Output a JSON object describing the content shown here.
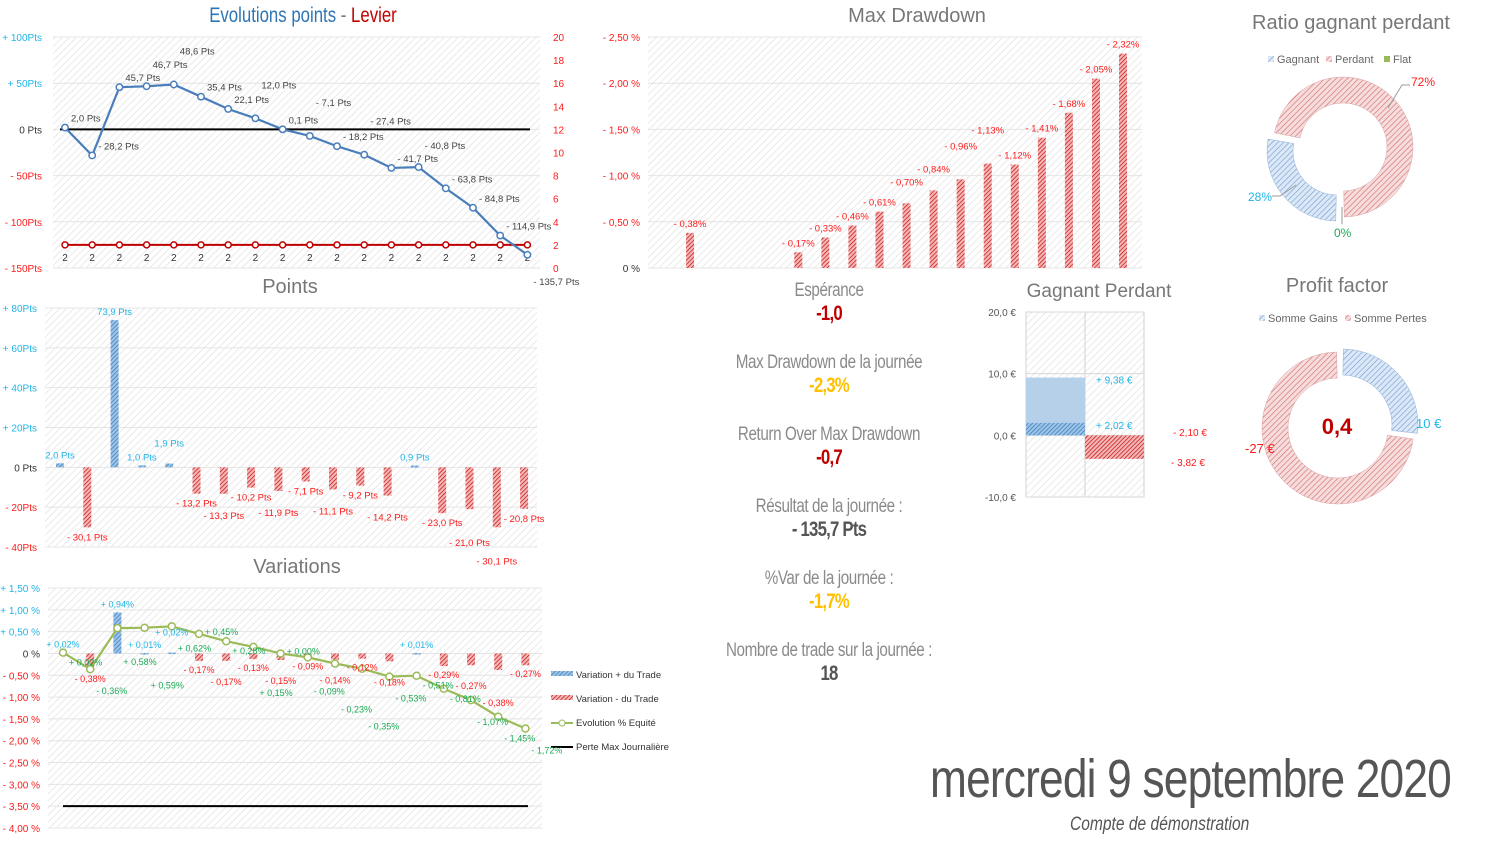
{
  "colors": {
    "blue": "#5b8fd0",
    "red": "#d04a4a",
    "pos_text": "#1fb5e8",
    "neg_text": "#ff1a1a",
    "equity": "#9bbb59",
    "equity_text": "#1aaa55",
    "dark_red": "#c00000",
    "gold": "#ffc000",
    "grey": "#8a8a8a"
  },
  "evolution": {
    "title_a": "Evolutions points",
    "title_sep": " - ",
    "title_b": "Levier",
    "chart_data": {
      "type": "line",
      "ylim": [
        -150,
        100
      ],
      "y2lim": [
        0,
        20
      ],
      "yticks": [
        {
          "v": 100,
          "t": "+ 100Pts"
        },
        {
          "v": 50,
          "t": "+ 50Pts"
        },
        {
          "v": 0,
          "t": "0 Pts"
        },
        {
          "v": -50,
          "t": "- 50Pts"
        },
        {
          "v": -100,
          "t": "- 100Pts"
        },
        {
          "v": -150,
          "t": "- 150Pts"
        }
      ],
      "y2ticks": [
        "0",
        "2",
        "4",
        "6",
        "8",
        "10",
        "12",
        "14",
        "16",
        "18",
        "20"
      ],
      "points": [
        2.0,
        -28.2,
        45.7,
        46.7,
        48.6,
        35.4,
        22.1,
        12.0,
        0.1,
        -7.1,
        -18.2,
        -27.4,
        -41.7,
        -40.8,
        -63.8,
        -84.8,
        -114.9,
        -135.7
      ],
      "levier": [
        2,
        2,
        2,
        2,
        2,
        2,
        2,
        2,
        2,
        2,
        2,
        2,
        2,
        2,
        2,
        2,
        2,
        2
      ]
    }
  },
  "points_chart": {
    "title": "Points",
    "chart_data": {
      "type": "bar",
      "ylim": [
        -40,
        80
      ],
      "yticks": [
        {
          "v": 80,
          "t": "+ 80Pts"
        },
        {
          "v": 60,
          "t": "+ 60Pts"
        },
        {
          "v": 40,
          "t": "+ 40Pts"
        },
        {
          "v": 20,
          "t": "+ 20Pts"
        },
        {
          "v": 0,
          "t": "0 Pts"
        },
        {
          "v": -20,
          "t": "- 20Pts"
        },
        {
          "v": -40,
          "t": "- 40Pts"
        }
      ],
      "values": [
        2.0,
        -30.1,
        73.9,
        1.0,
        1.9,
        -13.2,
        -13.3,
        -10.2,
        -11.9,
        -7.1,
        -11.1,
        -9.2,
        -14.2,
        0.9,
        -23.0,
        -21.0,
        -30.1,
        -20.8
      ]
    }
  },
  "variations": {
    "title": "Variations",
    "chart_data": {
      "type": "bar+line",
      "ylim": [
        -4.0,
        1.5
      ],
      "yticks": [
        {
          "v": 1.5,
          "t": "+ 1,50 %"
        },
        {
          "v": 1.0,
          "t": "+ 1,00 %"
        },
        {
          "v": 0.5,
          "t": "+ 0,50 %"
        },
        {
          "v": 0,
          "t": "0 %"
        },
        {
          "v": -0.5,
          "t": "- 0,50 %"
        },
        {
          "v": -1.0,
          "t": "- 1,00 %"
        },
        {
          "v": -1.5,
          "t": "- 1,50 %"
        },
        {
          "v": -2.0,
          "t": "- 2,00 %"
        },
        {
          "v": -2.5,
          "t": "- 2,50 %"
        },
        {
          "v": -3.0,
          "t": "- 3,00 %"
        },
        {
          "v": -3.5,
          "t": "- 3,50 %"
        },
        {
          "v": -4.0,
          "t": "- 4,00 %"
        }
      ],
      "trade_variation": [
        0.02,
        -0.38,
        0.94,
        0.01,
        0.02,
        -0.17,
        -0.17,
        -0.13,
        -0.15,
        -0.09,
        -0.14,
        -0.12,
        -0.18,
        0.01,
        -0.29,
        -0.27,
        -0.38,
        -0.27
      ],
      "equity": [
        0.02,
        -0.36,
        0.58,
        0.59,
        0.62,
        0.45,
        0.28,
        0.15,
        0.0,
        -0.09,
        -0.23,
        -0.35,
        -0.53,
        -0.51,
        -0.81,
        -1.07,
        -1.45,
        -1.72
      ],
      "max_daily_loss": -3.5,
      "legend": [
        "Variation + du Trade",
        "Variation - du Trade",
        "Evolution % Equité",
        "Perte Max Journalière"
      ]
    }
  },
  "drawdown": {
    "title": "Max Drawdown",
    "chart_data": {
      "type": "bar",
      "ylim": [
        0,
        -2.5
      ],
      "yticks": [
        {
          "v": 2.5,
          "t": "- 2,50 %"
        },
        {
          "v": 2.0,
          "t": "- 2,00 %"
        },
        {
          "v": 1.5,
          "t": "- 1,50 %"
        },
        {
          "v": 1.0,
          "t": "- 1,00 %"
        },
        {
          "v": 0.5,
          "t": "- 0,50 %"
        },
        {
          "v": 0,
          "t": "0 %"
        }
      ],
      "values": [
        0,
        -0.38,
        0,
        0,
        0,
        -0.17,
        -0.33,
        -0.46,
        -0.61,
        -0.7,
        -0.84,
        -0.96,
        -1.13,
        -1.12,
        -1.41,
        -1.68,
        -2.05,
        -2.32
      ]
    }
  },
  "ratio": {
    "title": "Ratio gagnant perdant",
    "legend": [
      "Gagnant",
      "Perdant",
      "Flat"
    ],
    "chart_data": {
      "type": "pie",
      "values": [
        28,
        72,
        0
      ],
      "labels": [
        "28%",
        "72%",
        "0%"
      ]
    }
  },
  "gagnant_perdant": {
    "title": "Gagnant Perdant",
    "chart_data": {
      "type": "bar",
      "ylim": [
        -10,
        20
      ],
      "yticks": [
        {
          "v": 20,
          "t": "20,0 €"
        },
        {
          "v": 10,
          "t": "10,0 €"
        },
        {
          "v": 0,
          "t": "0,0 €"
        },
        {
          "v": -10,
          "t": "-10,0 €"
        }
      ],
      "gain_max": 9.38,
      "gain_avg": 2.02,
      "loss_avg": -2.1,
      "loss_max": -3.82,
      "labels": [
        "+ 9,38 €",
        "+ 2,02 €",
        "- 2,10 €",
        "- 3,82 €"
      ]
    }
  },
  "profit_factor": {
    "title": "Profit factor",
    "legend": [
      "Somme Gains",
      "Somme Pertes"
    ],
    "value": "0,4",
    "chart_data": {
      "type": "pie",
      "values": [
        10,
        27
      ],
      "labels": [
        "10 €",
        "-27 €"
      ]
    }
  },
  "kpis": [
    {
      "label": "Espérance",
      "value": "-1,0",
      "color": "#c00000"
    },
    {
      "label": "Max Drawdown de la journée",
      "value": "-2,3%",
      "color": "#ffc000"
    },
    {
      "label": "Return Over Max Drawdown",
      "value": "-0,7",
      "color": "#c00000"
    },
    {
      "label": "Résultat de la journée :",
      "value": "- 135,7 Pts",
      "color": "#555555"
    },
    {
      "label": "%Var de la journée :",
      "value": "-1,7%",
      "color": "#ffc000"
    },
    {
      "label": "Nombre de trade sur la journée :",
      "value": "18",
      "color": "#555555"
    }
  ],
  "date": "mercredi 9 septembre 2020",
  "account": "Compte de démonstration"
}
